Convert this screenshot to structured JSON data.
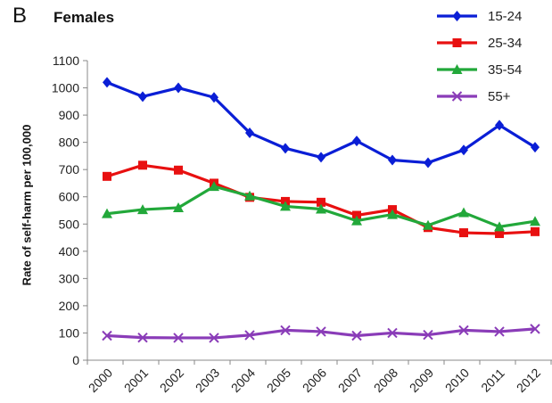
{
  "panel_label": "B",
  "chart_data": {
    "type": "line",
    "title": "Females",
    "xlabel": "",
    "ylabel": "Rate of self-harm per 100,000",
    "x": [
      "2000",
      "2001",
      "2002",
      "2003",
      "2004",
      "2005",
      "2006",
      "2007",
      "2008",
      "2009",
      "2010",
      "2011",
      "2012"
    ],
    "ylim": [
      0,
      1100
    ],
    "yticks": [
      0,
      100,
      200,
      300,
      400,
      500,
      600,
      700,
      800,
      900,
      1000,
      1100
    ],
    "grid": false,
    "legend_position": "top-right",
    "series": [
      {
        "name": "15-24",
        "color": "#0a1ed6",
        "marker": "diamond",
        "values": [
          1020,
          968,
          1000,
          965,
          835,
          778,
          745,
          805,
          735,
          725,
          772,
          863,
          782
        ]
      },
      {
        "name": "25-34",
        "color": "#e81010",
        "marker": "square",
        "values": [
          675,
          716,
          698,
          650,
          598,
          583,
          580,
          532,
          553,
          487,
          468,
          465,
          472
        ]
      },
      {
        "name": "35-54",
        "color": "#22a83a",
        "marker": "triangle",
        "values": [
          538,
          553,
          560,
          638,
          603,
          565,
          555,
          512,
          535,
          495,
          542,
          490,
          510
        ]
      },
      {
        "name": "55+",
        "color": "#8a3cb8",
        "marker": "x",
        "values": [
          90,
          83,
          82,
          82,
          92,
          110,
          105,
          90,
          100,
          93,
          110,
          105,
          115
        ]
      }
    ]
  }
}
